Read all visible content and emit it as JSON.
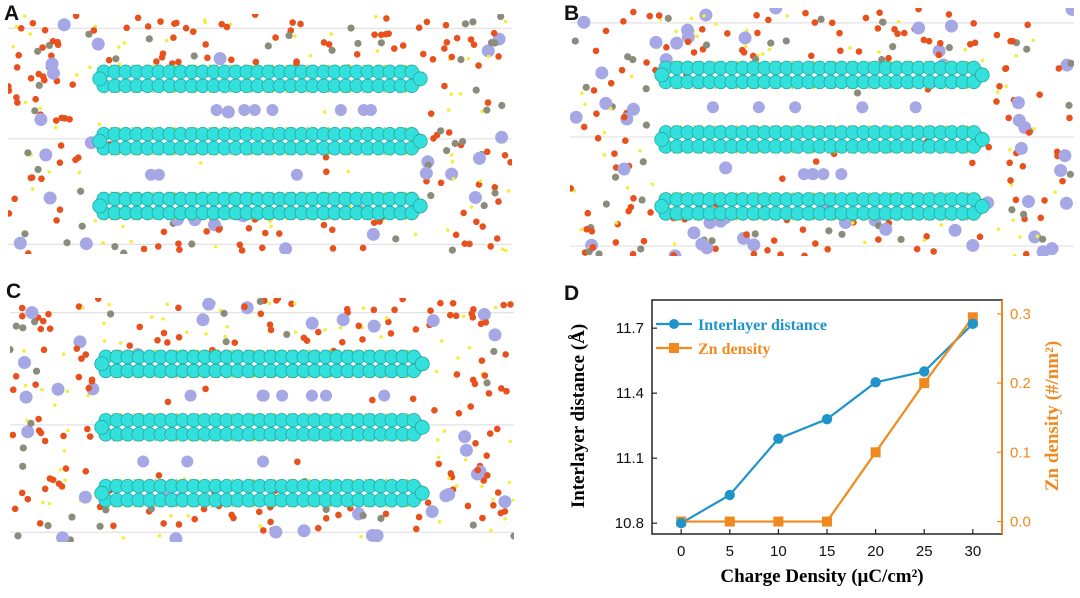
{
  "panels": [
    {
      "label": "A"
    },
    {
      "label": "B"
    },
    {
      "label": "C"
    },
    {
      "label": "D"
    }
  ],
  "colors": {
    "layer": "#33e0dc",
    "layer_edge": "#1fa9a6",
    "oxygen": "#e8501c",
    "zinc_ion": "#a6a8e6",
    "grey_atom": "#8c8c7c",
    "hydrogen": "#f2ee3a",
    "bond": "#b9d63a",
    "series_interlayer": "#1f94c9",
    "series_zn": "#f08a1e"
  },
  "chart_data": {
    "type": "line",
    "title": "",
    "xlabel": "Charge Density (μC/cm²)",
    "ylabel": "Interlayer distance (Å)",
    "y2label": "Zn density (#/nm²)",
    "x": [
      0,
      5,
      10,
      15,
      20,
      25,
      30
    ],
    "xticks": [
      "0",
      "5",
      "10",
      "15",
      "20",
      "25",
      "30"
    ],
    "xlim": [
      -3,
      33
    ],
    "ylim": [
      10.75,
      11.83
    ],
    "yticks": [
      "10.8",
      "11.1",
      "11.4",
      "11.7"
    ],
    "y2lim": [
      -0.018,
      0.32
    ],
    "y2ticks": [
      "0.0",
      "0.1",
      "0.2",
      "0.3"
    ],
    "legend_position": "top-left",
    "series": [
      {
        "name": "Interlayer distance",
        "axis": "left",
        "marker": "circle",
        "values": [
          10.8,
          10.93,
          11.19,
          11.28,
          11.45,
          11.5,
          11.72
        ]
      },
      {
        "name": "Zn density",
        "axis": "right",
        "marker": "square",
        "values": [
          0.0,
          0.0,
          0.0,
          0.0,
          0.1,
          0.2,
          0.295
        ]
      }
    ]
  }
}
